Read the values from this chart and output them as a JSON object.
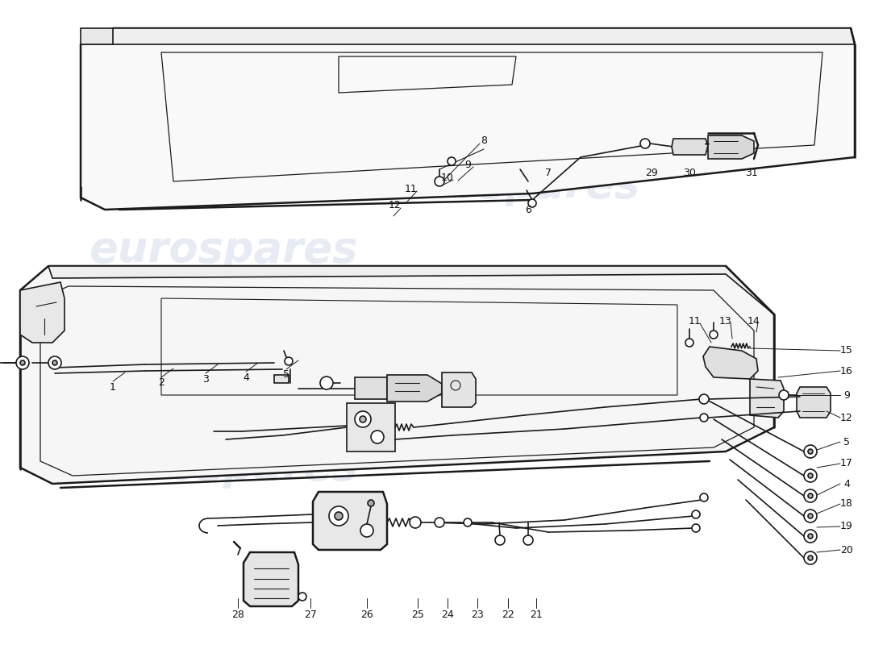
{
  "background_color": "#ffffff",
  "line_color": "#1a1a1a",
  "watermark_text": "eurospares",
  "watermark_color": "#c8d4e8",
  "watermark_alpha": 0.45,
  "watermark_fontsize": 38,
  "label_fontsize": 9,
  "label_color": "#111111"
}
